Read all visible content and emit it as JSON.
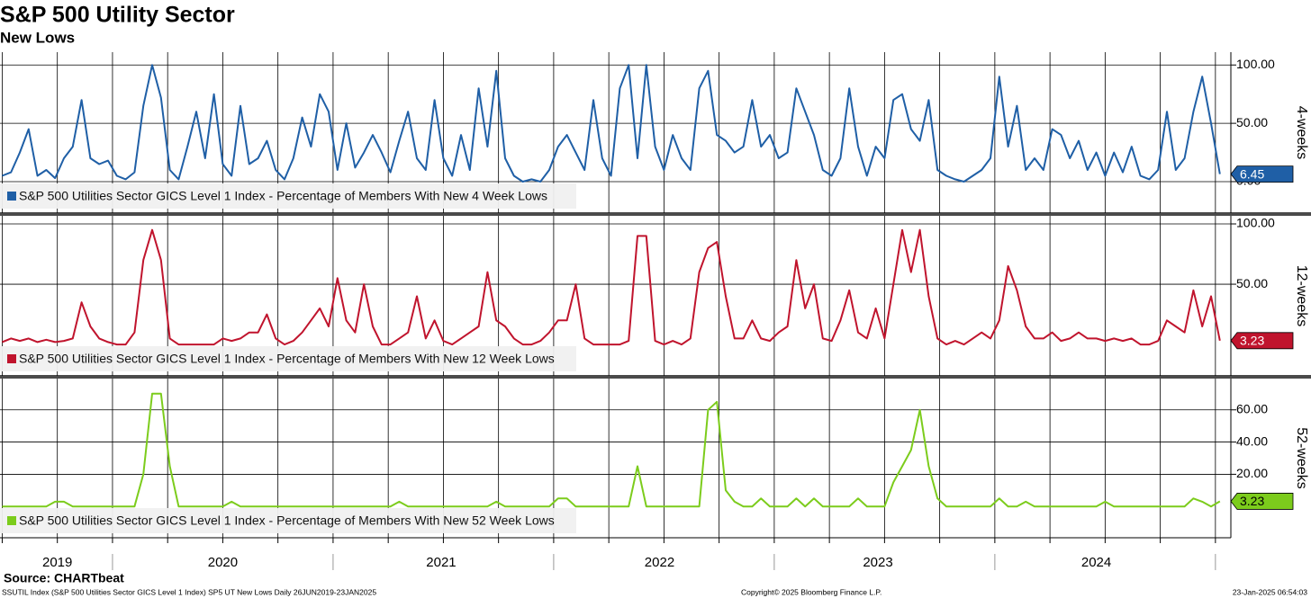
{
  "title": "S&P 500 Utility Sector",
  "subtitle": "New Lows",
  "source": "Source: CHARTbeat",
  "footer_left": "SSUTIL Index (S&P 500 Utilities Sector GICS Level 1 Index) SP5 UT New Lows  Daily 26JUN2019-23JAN2025",
  "footer_center": "Copyright© 2025 Bloomberg Finance L.P.",
  "footer_right": "23-Jan-2025 06:54:03",
  "chart_data": {
    "type": "line",
    "x": [
      2019.5,
      2019.54,
      2019.58,
      2019.62,
      2019.66,
      2019.7,
      2019.74,
      2019.78,
      2019.82,
      2019.86,
      2019.9,
      2019.94,
      2019.98,
      2020.02,
      2020.06,
      2020.1,
      2020.14,
      2020.18,
      2020.22,
      2020.26,
      2020.3,
      2020.34,
      2020.38,
      2020.42,
      2020.46,
      2020.5,
      2020.54,
      2020.58,
      2020.62,
      2020.66,
      2020.7,
      2020.74,
      2020.78,
      2020.82,
      2020.86,
      2020.9,
      2020.94,
      2020.98,
      2021.02,
      2021.06,
      2021.1,
      2021.14,
      2021.18,
      2021.22,
      2021.26,
      2021.3,
      2021.34,
      2021.38,
      2021.42,
      2021.46,
      2021.5,
      2021.54,
      2021.58,
      2021.62,
      2021.66,
      2021.7,
      2021.74,
      2021.78,
      2021.82,
      2021.86,
      2021.9,
      2021.94,
      2021.98,
      2022.02,
      2022.06,
      2022.1,
      2022.14,
      2022.18,
      2022.22,
      2022.26,
      2022.3,
      2022.34,
      2022.38,
      2022.42,
      2022.46,
      2022.5,
      2022.54,
      2022.58,
      2022.62,
      2022.66,
      2022.7,
      2022.74,
      2022.78,
      2022.82,
      2022.86,
      2022.9,
      2022.94,
      2022.98,
      2023.02,
      2023.06,
      2023.1,
      2023.14,
      2023.18,
      2023.22,
      2023.26,
      2023.3,
      2023.34,
      2023.38,
      2023.42,
      2023.46,
      2023.5,
      2023.54,
      2023.58,
      2023.62,
      2023.66,
      2023.7,
      2023.74,
      2023.78,
      2023.82,
      2023.86,
      2023.9,
      2023.94,
      2023.98,
      2024.02,
      2024.06,
      2024.1,
      2024.14,
      2024.18,
      2024.22,
      2024.26,
      2024.3,
      2024.34,
      2024.38,
      2024.42,
      2024.46,
      2024.5,
      2024.54,
      2024.58,
      2024.62,
      2024.66,
      2024.7,
      2024.74,
      2024.78,
      2024.82,
      2024.86,
      2024.9,
      2024.94,
      2024.98,
      2025.02
    ],
    "xlim": [
      2019.49,
      2025.07
    ],
    "xticks": [
      {
        "value": 2019.75,
        "label": "2019"
      },
      {
        "value": 2020.5,
        "label": "2020"
      },
      {
        "value": 2021.49,
        "label": "2021"
      },
      {
        "value": 2022.48,
        "label": "2022"
      },
      {
        "value": 2023.47,
        "label": "2023"
      },
      {
        "value": 2024.46,
        "label": "2024"
      }
    ],
    "year_boundaries": [
      2020,
      2021,
      2022,
      2023,
      2024,
      2025
    ],
    "xgrid": [
      2019.5,
      2019.75,
      2020,
      2020.25,
      2020.5,
      2020.75,
      2021,
      2021.25,
      2021.5,
      2021.75,
      2022,
      2022.25,
      2022.5,
      2022.75,
      2023,
      2023.25,
      2023.5,
      2023.75,
      2024,
      2024.25,
      2024.5,
      2024.75,
      2025
    ],
    "grid": true,
    "series": [
      {
        "name": "S&P 500 Utilities Sector GICS Level 1 Index - Percentage of Members With New 4 Week Lows",
        "y_label": "4-weeks",
        "color": "#1f5fa6",
        "label_color": "#ffffff",
        "ylim": [
          -27,
          111
        ],
        "yticks": [
          {
            "value": 0,
            "label": "0.00"
          },
          {
            "value": 50,
            "label": "50.00"
          },
          {
            "value": 100,
            "label": "100.00"
          }
        ],
        "values": [
          5,
          8,
          25,
          45,
          5,
          10,
          3,
          20,
          30,
          70,
          20,
          15,
          18,
          5,
          2,
          8,
          65,
          100,
          72,
          10,
          2,
          30,
          60,
          20,
          75,
          15,
          5,
          65,
          15,
          20,
          35,
          10,
          2,
          20,
          55,
          30,
          75,
          60,
          10,
          50,
          12,
          25,
          40,
          25,
          8,
          35,
          60,
          20,
          10,
          70,
          20,
          5,
          40,
          10,
          80,
          30,
          95,
          20,
          5,
          0,
          2,
          0,
          10,
          30,
          40,
          25,
          10,
          70,
          20,
          5,
          80,
          100,
          20,
          100,
          30,
          10,
          40,
          20,
          10,
          80,
          95,
          40,
          35,
          25,
          30,
          70,
          30,
          40,
          20,
          25,
          80,
          60,
          40,
          10,
          5,
          20,
          80,
          30,
          5,
          30,
          20,
          70,
          75,
          45,
          35,
          70,
          10,
          5,
          2,
          0,
          5,
          10,
          20,
          90,
          30,
          65,
          10,
          20,
          10,
          45,
          40,
          20,
          35,
          10,
          25,
          5,
          25,
          8,
          30,
          5,
          2,
          10,
          60,
          10,
          20,
          60,
          90,
          50,
          6.45
        ]
      },
      {
        "name": "S&P 500 Utilities Sector GICS Level 1 Index - Percentage of Members With New 12 Week Lows",
        "y_label": "12-weeks",
        "color": "#c0142d",
        "label_color": "#ffffff",
        "ylim": [
          -26,
          106.7
        ],
        "yticks": [
          {
            "value": 50,
            "label": "50.00"
          },
          {
            "value": 100,
            "label": "100.00"
          }
        ],
        "values": [
          2,
          5,
          3,
          5,
          2,
          4,
          2,
          3,
          5,
          35,
          15,
          5,
          2,
          0,
          0,
          10,
          70,
          95,
          70,
          5,
          0,
          0,
          0,
          0,
          0,
          5,
          3,
          5,
          10,
          10,
          25,
          5,
          0,
          3,
          10,
          20,
          30,
          15,
          55,
          20,
          10,
          50,
          15,
          0,
          0,
          5,
          10,
          40,
          5,
          20,
          3,
          0,
          5,
          10,
          15,
          60,
          20,
          15,
          5,
          0,
          0,
          3,
          10,
          20,
          20,
          50,
          5,
          0,
          0,
          0,
          0,
          3,
          90,
          90,
          3,
          0,
          3,
          0,
          5,
          60,
          80,
          85,
          40,
          5,
          5,
          20,
          5,
          3,
          10,
          15,
          70,
          30,
          50,
          5,
          3,
          20,
          45,
          10,
          5,
          30,
          5,
          50,
          95,
          60,
          95,
          40,
          5,
          0,
          3,
          0,
          5,
          10,
          5,
          20,
          65,
          45,
          15,
          5,
          5,
          10,
          3,
          5,
          10,
          5,
          5,
          3,
          5,
          3,
          5,
          0,
          0,
          3,
          20,
          15,
          10,
          45,
          15,
          40,
          3.23
        ]
      },
      {
        "name": "S&P 500 Utilities Sector GICS Level 1 Index - Percentage of Members With New 52 Week Lows",
        "y_label": "52-weeks",
        "color": "#7ccc1c",
        "label_color": "#000000",
        "ylim": [
          -19.4,
          79.4
        ],
        "yticks": [
          {
            "value": 20,
            "label": "20.00"
          },
          {
            "value": 40,
            "label": "40.00"
          },
          {
            "value": 60,
            "label": "60.00"
          }
        ],
        "values": [
          0,
          0,
          0,
          0,
          0,
          0,
          3,
          3,
          0,
          0,
          0,
          0,
          0,
          0,
          0,
          0,
          20,
          70,
          70,
          25,
          0,
          0,
          0,
          0,
          0,
          0,
          3,
          0,
          0,
          0,
          0,
          0,
          0,
          0,
          0,
          0,
          0,
          0,
          0,
          0,
          0,
          0,
          0,
          0,
          0,
          3,
          0,
          0,
          0,
          0,
          0,
          0,
          0,
          0,
          0,
          0,
          3,
          0,
          0,
          0,
          0,
          0,
          0,
          5,
          5,
          0,
          0,
          0,
          0,
          0,
          0,
          0,
          25,
          0,
          0,
          0,
          0,
          0,
          0,
          0,
          60,
          65,
          10,
          3,
          0,
          0,
          5,
          0,
          0,
          0,
          5,
          0,
          5,
          0,
          0,
          0,
          0,
          5,
          0,
          0,
          0,
          15,
          25,
          35,
          60,
          25,
          5,
          0,
          0,
          0,
          0,
          0,
          0,
          5,
          0,
          0,
          3,
          0,
          0,
          0,
          0,
          0,
          0,
          0,
          0,
          3,
          0,
          0,
          0,
          0,
          0,
          0,
          0,
          0,
          0,
          5,
          3,
          0,
          3.23
        ]
      }
    ]
  }
}
